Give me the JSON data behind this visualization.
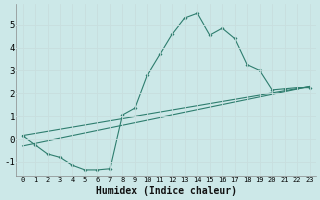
{
  "xlabel": "Humidex (Indice chaleur)",
  "bg_color": "#cce8e8",
  "grid_color": "#e8f4f4",
  "line_color": "#2e7d6e",
  "markersize": 2.0,
  "xlim": [
    -0.5,
    23.5
  ],
  "ylim": [
    -1.6,
    5.9
  ],
  "xticks": [
    0,
    1,
    2,
    3,
    4,
    5,
    6,
    7,
    8,
    9,
    10,
    11,
    12,
    13,
    14,
    15,
    16,
    17,
    18,
    19,
    20,
    21,
    22,
    23
  ],
  "yticks": [
    -1,
    0,
    1,
    2,
    3,
    4,
    5
  ],
  "curve1_x": [
    0,
    1,
    2,
    3,
    4,
    5,
    6,
    7,
    8,
    9,
    10,
    11,
    12,
    13,
    14,
    15,
    16,
    17,
    18,
    19,
    20,
    21,
    22,
    23
  ],
  "curve1_y": [
    0.15,
    -0.25,
    -0.65,
    -0.8,
    -1.15,
    -1.35,
    -1.35,
    -1.3,
    1.05,
    1.35,
    2.8,
    3.7,
    4.6,
    5.3,
    5.5,
    4.55,
    4.85,
    4.4,
    3.25,
    3.0,
    2.15,
    2.2,
    2.25,
    2.25
  ],
  "line2_x0": 0,
  "line2_y0": 0.15,
  "line2_x1": 23,
  "line2_y1": 2.3,
  "line3_x0": 0,
  "line3_y0": -0.3,
  "line3_x1": 23,
  "line3_y1": 2.3
}
